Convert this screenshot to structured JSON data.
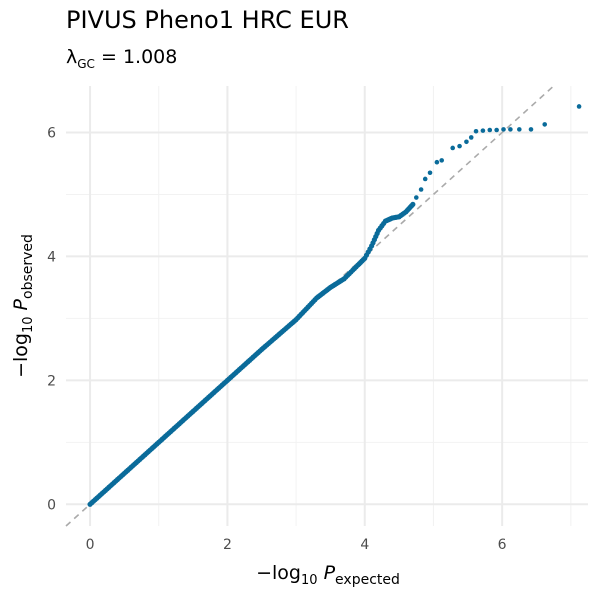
{
  "title": "PIVUS Pheno1 HRC EUR",
  "subtitle": {
    "lambda_symbol": "λ",
    "lambda_subscript": "GC",
    "equals": " = ",
    "lambda_value": "1.008"
  },
  "chart_data": {
    "type": "scatter",
    "title": "PIVUS Pheno1 HRC EUR",
    "subtitle": "λGC = 1.008",
    "xlabel": {
      "prefix": "−log",
      "base": "10",
      "var": "P",
      "sub": "expected"
    },
    "ylabel": {
      "prefix": "−log",
      "base": "10",
      "var": "P",
      "sub": "observed"
    },
    "xlim": [
      -0.35,
      7.25
    ],
    "ylim": [
      -0.35,
      6.75
    ],
    "xticks": [
      0,
      2,
      4,
      6
    ],
    "yticks": [
      0,
      2,
      4,
      6
    ],
    "xtick_labels": [
      "0",
      "2",
      "4",
      "6"
    ],
    "ytick_labels": [
      "0",
      "2",
      "4",
      "6"
    ],
    "grid": true,
    "reference_line": {
      "slope": 1,
      "intercept": 0,
      "style": "dashed",
      "color": "#aaaaaa"
    },
    "point_color": "#0a6b9a",
    "series": [
      {
        "dense_curve": [
          [
            0.0,
            0.0
          ],
          [
            0.5,
            0.5
          ],
          [
            1.0,
            1.0
          ],
          [
            1.5,
            1.5
          ],
          [
            2.0,
            2.0
          ],
          [
            2.5,
            2.5
          ],
          [
            3.0,
            2.98
          ],
          [
            3.3,
            3.33
          ],
          [
            3.5,
            3.5
          ],
          [
            3.7,
            3.64
          ],
          [
            3.9,
            3.86
          ],
          [
            4.0,
            3.97
          ],
          [
            4.1,
            4.17
          ],
          [
            4.2,
            4.42
          ],
          [
            4.3,
            4.57
          ],
          [
            4.4,
            4.62
          ],
          [
            4.5,
            4.64
          ],
          [
            4.6,
            4.72
          ],
          [
            4.7,
            4.84
          ]
        ],
        "tail_points": [
          [
            4.75,
            4.95
          ],
          [
            4.82,
            5.08
          ],
          [
            4.88,
            5.25
          ],
          [
            4.95,
            5.35
          ],
          [
            5.05,
            5.52
          ],
          [
            5.12,
            5.55
          ],
          [
            5.28,
            5.75
          ],
          [
            5.38,
            5.78
          ],
          [
            5.48,
            5.85
          ],
          [
            5.55,
            5.92
          ],
          [
            5.62,
            6.02
          ],
          [
            5.72,
            6.03
          ],
          [
            5.82,
            6.04
          ],
          [
            5.92,
            6.04
          ],
          [
            6.02,
            6.05
          ],
          [
            6.12,
            6.05
          ],
          [
            6.25,
            6.05
          ],
          [
            6.42,
            6.05
          ],
          [
            6.62,
            6.13
          ],
          [
            7.12,
            6.42
          ]
        ]
      }
    ]
  }
}
